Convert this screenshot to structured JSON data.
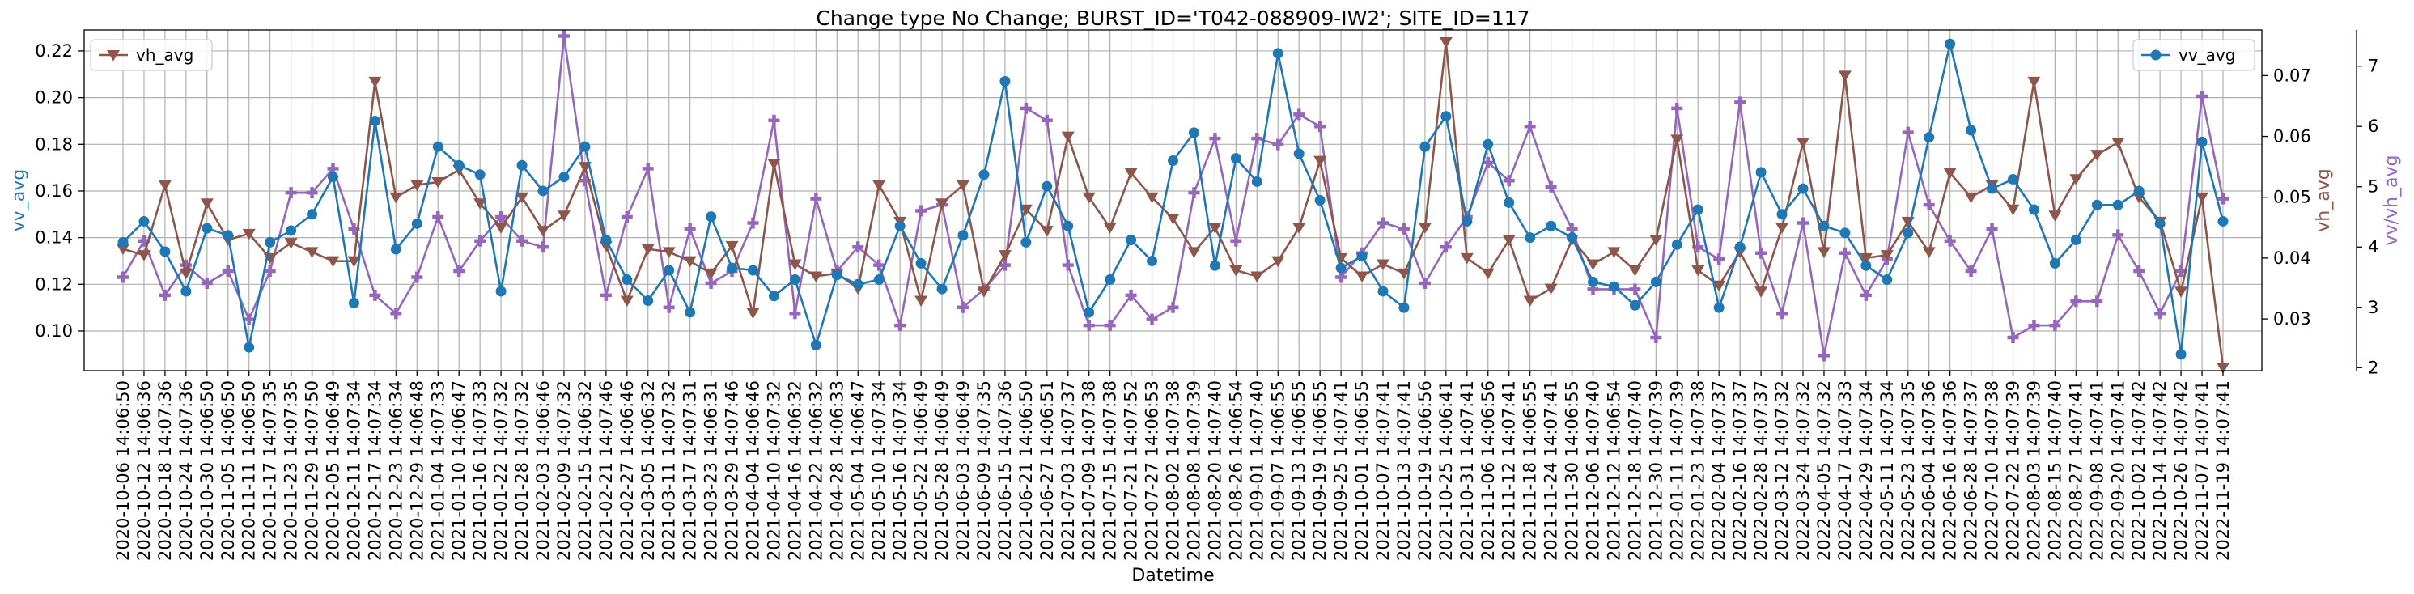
{
  "chart_data": {
    "type": "line",
    "title": "Change type No Change; BURST_ID='T042-088909-IW2'; SITE_ID=117",
    "xlabel": "Datetime",
    "grid": true,
    "categories": [
      "2020-10-06 14:06:50",
      "2020-10-12 14:06:36",
      "2020-10-18 14:07:36",
      "2020-10-24 14:07:36",
      "2020-10-30 14:06:50",
      "2020-11-05 14:06:50",
      "2020-11-11 14:06:50",
      "2020-11-17 14:07:35",
      "2020-11-23 14:07:35",
      "2020-11-29 14:07:50",
      "2020-12-05 14:06:49",
      "2020-12-11 14:07:34",
      "2020-12-17 14:07:34",
      "2020-12-23 14:06:34",
      "2020-12-29 14:06:48",
      "2021-01-04 14:07:33",
      "2021-01-10 14:06:47",
      "2021-01-16 14:07:33",
      "2021-01-22 14:07:32",
      "2021-01-28 14:07:32",
      "2021-02-03 14:06:46",
      "2021-02-09 14:07:32",
      "2021-02-15 14:06:32",
      "2021-02-21 14:07:46",
      "2021-02-27 14:06:46",
      "2021-03-05 14:06:32",
      "2021-03-11 14:07:32",
      "2021-03-17 14:07:31",
      "2021-03-23 14:06:31",
      "2021-03-29 14:07:46",
      "2021-04-04 14:06:46",
      "2021-04-10 14:07:32",
      "2021-04-16 14:06:32",
      "2021-04-22 14:06:32",
      "2021-04-28 14:06:33",
      "2021-05-04 14:06:47",
      "2021-05-10 14:07:34",
      "2021-05-16 14:07:34",
      "2021-05-22 14:06:49",
      "2021-05-28 14:06:49",
      "2021-06-03 14:06:49",
      "2021-06-09 14:07:35",
      "2021-06-15 14:07:36",
      "2021-06-21 14:06:50",
      "2021-06-27 14:06:51",
      "2021-07-03 14:07:37",
      "2021-07-09 14:07:38",
      "2021-07-15 14:07:38",
      "2021-07-21 14:07:52",
      "2021-07-27 14:06:53",
      "2021-08-02 14:07:38",
      "2021-08-08 14:07:39",
      "2021-08-20 14:07:40",
      "2021-08-26 14:06:54",
      "2021-09-01 14:07:40",
      "2021-09-07 14:06:55",
      "2021-09-13 14:06:55",
      "2021-09-19 14:06:55",
      "2021-09-25 14:07:41",
      "2021-10-01 14:06:55",
      "2021-10-07 14:07:41",
      "2021-10-13 14:07:41",
      "2021-10-19 14:06:56",
      "2021-10-25 14:06:41",
      "2021-10-31 14:07:41",
      "2021-11-06 14:06:56",
      "2021-11-12 14:07:41",
      "2021-11-18 14:06:55",
      "2021-11-24 14:07:41",
      "2021-11-30 14:06:55",
      "2021-12-06 14:07:40",
      "2021-12-12 14:06:54",
      "2021-12-18 14:07:40",
      "2021-12-30 14:07:39",
      "2022-01-11 14:07:39",
      "2022-01-23 14:07:38",
      "2022-02-04 14:07:37",
      "2022-02-16 14:07:37",
      "2022-02-28 14:07:37",
      "2022-03-12 14:07:32",
      "2022-03-24 14:07:32",
      "2022-04-05 14:07:32",
      "2022-04-17 14:07:33",
      "2022-04-29 14:07:34",
      "2022-05-11 14:07:34",
      "2022-05-23 14:07:35",
      "2022-06-04 14:07:36",
      "2022-06-16 14:07:36",
      "2022-06-28 14:07:37",
      "2022-07-10 14:07:38",
      "2022-07-22 14:07:39",
      "2022-08-03 14:07:39",
      "2022-08-15 14:07:40",
      "2022-08-27 14:07:41",
      "2022-09-08 14:07:41",
      "2022-09-20 14:07:41",
      "2022-10-02 14:07:42",
      "2022-10-14 14:07:42",
      "2022-10-26 14:07:42",
      "2022-11-07 14:07:41",
      "2022-11-19 14:07:41"
    ],
    "x_tick_labels": [
      "2020-10-06 14:06:50",
      "2020-10-12 14:06:36",
      "2020-10-18 14:07:36",
      "2020-10-24 14:07:36",
      "2020-10-30 14:06:50",
      "2020-11-05 14:06:50",
      "2020-11-11 14:06:50",
      "2020-11-17 14:07:35",
      "2020-11-23 14:07:35",
      "2020-11-29 14:07:50",
      "2020-12-05 14:06:49",
      "2020-12-11 14:07:34",
      "2020-12-17 14:07:34",
      "2020-12-23 14:06:34",
      "2020-12-29 14:06:48",
      "2021-01-04 14:07:33",
      "2021-01-10 14:06:47",
      "2021-01-16 14:07:33",
      "2021-01-22 14:07:32",
      "2021-01-28 14:07:32",
      "2021-02-03 14:06:46",
      "2021-02-09 14:07:32",
      "2021-02-15 14:06:32",
      "2021-02-21 14:07:46",
      "2021-02-27 14:06:46",
      "2021-03-05 14:06:32",
      "2021-03-11 14:07:32",
      "2021-03-17 14:07:31",
      "2021-03-23 14:06:31",
      "2021-03-29 14:07:46",
      "2021-04-04 14:06:46",
      "2021-04-10 14:07:32",
      "2021-04-16 14:06:32",
      "2021-04-22 14:06:32",
      "2021-04-28 14:06:33",
      "2021-05-04 14:06:47",
      "2021-05-10 14:07:34",
      "2021-05-16 14:07:34",
      "2021-05-22 14:06:49",
      "2021-05-28 14:06:49",
      "2021-06-03 14:06:49",
      "2021-06-09 14:07:35",
      "2021-06-15 14:07:36",
      "2021-06-21 14:06:50",
      "2021-06-27 14:06:51",
      "2021-07-03 14:07:37",
      "2021-07-09 14:07:38",
      "2021-07-15 14:07:38",
      "2021-07-21 14:07:52",
      "2021-07-27 14:06:53",
      "2021-08-02 14:07:38",
      "2021-08-08 14:07:39",
      "2021-08-20 14:07:40",
      "2021-08-26 14:06:54",
      "2021-09-01 14:07:40",
      "2021-09-07 14:06:55",
      "2021-09-13 14:06:55",
      "2021-09-19 14:06:55",
      "2021-09-25 14:07:41",
      "2021-10-01 14:06:55",
      "2021-10-07 14:07:41",
      "2021-10-13 14:07:41",
      "2021-10-19 14:06:56",
      "2021-10-25 14:06:41",
      "2021-10-31 14:07:41",
      "2021-11-06 14:06:56",
      "2021-11-12 14:07:41",
      "2021-11-18 14:06:55",
      "2021-11-24 14:07:41",
      "2021-11-30 14:06:55",
      "2021-12-06 14:07:40",
      "2021-12-12 14:06:54",
      "2021-12-18 14:07:40",
      "2021-12-30 14:07:39",
      "2022-01-11 14:07:39",
      "2022-01-23 14:07:38",
      "2022-02-04 14:07:37",
      "2022-02-16 14:07:37",
      "2022-02-28 14:07:37",
      "2022-03-12 14:07:32",
      "2022-03-24 14:07:32",
      "2022-04-05 14:07:32",
      "2022-04-17 14:07:33",
      "2022-04-29 14:07:34",
      "2022-05-11 14:07:34",
      "2022-05-23 14:07:35",
      "2022-06-04 14:07:36",
      "2022-06-16 14:07:36",
      "2022-06-28 14:07:37",
      "2022-07-10 14:07:38",
      "2022-07-22 14:07:39",
      "2022-08-03 14:07:39",
      "2022-08-15 14:07:40",
      "2022-08-27 14:07:41",
      "2022-09-08 14:07:41",
      "2022-09-20 14:07:41",
      "2022-10-02 14:07:42",
      "2022-10-14 14:07:42",
      "2022-10-26 14:07:42",
      "2022-11-07 14:07:41",
      "2022-11-19 14:07:41"
    ],
    "axes": [
      {
        "side": "left",
        "label": "vv_avg",
        "color": "#1f77b4",
        "ylim": [
          0.083,
          0.229
        ],
        "ticks": [
          0.1,
          0.12,
          0.14,
          0.16,
          0.18,
          0.2,
          0.22
        ],
        "tick_labels": [
          "0.10",
          "0.12",
          "0.14",
          "0.16",
          "0.18",
          "0.20",
          "0.22"
        ]
      },
      {
        "side": "right",
        "label": "vh_avg",
        "color": "#8c564b",
        "ylim": [
          0.0215,
          0.0775
        ],
        "ticks": [
          0.03,
          0.04,
          0.05,
          0.06,
          0.07
        ],
        "tick_labels": [
          "0.03",
          "0.04",
          "0.05",
          "0.06",
          "0.07"
        ]
      },
      {
        "side": "right-outer",
        "label": "vv/vh_avg",
        "color": "#9467bd",
        "ylim": [
          1.95,
          7.6
        ],
        "ticks": [
          2,
          3,
          4,
          5,
          6,
          7
        ],
        "tick_labels": [
          "2",
          "3",
          "4",
          "5",
          "6",
          "7"
        ]
      }
    ],
    "series": [
      {
        "name": "vv_avg",
        "axis": 0,
        "color": "#1f77b4",
        "marker": "circle",
        "values": [
          0.138,
          0.147,
          0.134,
          0.117,
          0.144,
          0.141,
          0.093,
          0.138,
          0.143,
          0.15,
          0.166,
          0.112,
          0.19,
          0.135,
          0.146,
          0.179,
          0.171,
          0.167,
          0.117,
          0.171,
          0.16,
          0.166,
          0.179,
          0.139,
          0.122,
          0.113,
          0.126,
          0.108,
          0.149,
          0.127,
          0.126,
          0.115,
          0.122,
          0.094,
          0.124,
          0.12,
          0.122,
          0.145,
          0.129,
          0.118,
          0.141,
          0.167,
          0.207,
          0.138,
          0.162,
          0.145,
          0.108,
          0.122,
          0.139,
          0.13,
          0.173,
          0.185,
          0.128,
          0.174,
          0.164,
          0.219,
          0.176,
          0.156,
          0.127,
          0.132,
          0.117,
          0.11,
          0.179,
          0.192,
          0.147,
          0.18,
          0.155,
          0.14,
          0.145,
          0.14,
          0.121,
          0.119,
          0.111,
          0.121,
          0.137,
          0.152,
          0.11,
          0.136,
          0.168,
          0.15,
          0.161,
          0.145,
          0.142,
          0.128,
          0.122,
          0.142,
          0.183,
          0.223,
          0.186,
          0.161,
          0.165,
          0.152,
          0.129,
          0.139,
          0.154,
          0.154,
          0.16,
          0.146,
          0.09,
          0.181,
          0.147
        ]
      },
      {
        "name": "vh_avg",
        "axis": 1,
        "color": "#8c564b",
        "marker": "triangle-down",
        "values": [
          0.0415,
          0.0405,
          0.052,
          0.0375,
          0.049,
          0.043,
          0.044,
          0.04,
          0.0425,
          0.041,
          0.0395,
          0.0395,
          0.069,
          0.05,
          0.052,
          0.0525,
          0.0545,
          0.049,
          0.045,
          0.05,
          0.0445,
          0.047,
          0.055,
          0.042,
          0.033,
          0.0415,
          0.041,
          0.0395,
          0.0375,
          0.042,
          0.031,
          0.0555,
          0.039,
          0.037,
          0.0375,
          0.035,
          0.052,
          0.046,
          0.033,
          0.049,
          0.052,
          0.0345,
          0.0405,
          0.048,
          0.0445,
          0.06,
          0.05,
          0.045,
          0.054,
          0.05,
          0.0465,
          0.041,
          0.045,
          0.038,
          0.037,
          0.0395,
          0.045,
          0.056,
          0.04,
          0.037,
          0.039,
          0.0375,
          0.045,
          0.0755,
          0.04,
          0.0375,
          0.043,
          0.033,
          0.035,
          0.043,
          0.039,
          0.041,
          0.038,
          0.043,
          0.0595,
          0.038,
          0.0355,
          0.041,
          0.0345,
          0.045,
          0.059,
          0.041,
          0.07,
          0.04,
          0.0405,
          0.046,
          0.041,
          0.054,
          0.05,
          0.052,
          0.048,
          0.069,
          0.047,
          0.053,
          0.057,
          0.059,
          0.05,
          0.046,
          0.0345,
          0.05,
          0.022
        ]
      },
      {
        "name": "vv/vh_avg",
        "axis": 2,
        "color": "#9467bd",
        "marker": "plus",
        "values": [
          3.5,
          4.1,
          3.2,
          3.7,
          3.4,
          3.6,
          2.8,
          3.6,
          4.9,
          4.9,
          5.3,
          4.3,
          3.2,
          2.9,
          3.5,
          4.5,
          3.6,
          4.1,
          4.5,
          4.1,
          4.0,
          7.5,
          5.1,
          3.2,
          4.5,
          5.3,
          3.0,
          4.3,
          3.4,
          3.6,
          4.4,
          6.1,
          2.9,
          4.8,
          3.6,
          4.0,
          3.7,
          2.7,
          4.6,
          4.7,
          3.0,
          3.3,
          3.7,
          6.3,
          6.1,
          3.7,
          2.7,
          2.7,
          3.2,
          2.8,
          3.0,
          4.9,
          5.8,
          4.1,
          5.8,
          5.7,
          6.2,
          6.0,
          3.5,
          3.9,
          4.4,
          4.3,
          3.4,
          4.0,
          4.5,
          5.4,
          5.1,
          6.0,
          5.0,
          4.3,
          3.3,
          3.3,
          3.3,
          2.5,
          6.3,
          4.0,
          3.8,
          6.4,
          3.9,
          2.9,
          4.4,
          2.2,
          3.9,
          3.2,
          3.8,
          5.9,
          4.7,
          4.1,
          3.6,
          4.3,
          2.5,
          2.7,
          2.7,
          3.1,
          3.1,
          4.2,
          3.6,
          2.9,
          3.6,
          6.5,
          4.8
        ]
      }
    ],
    "legends": [
      {
        "placement": "top-left",
        "entries": [
          "vh_avg"
        ]
      },
      {
        "placement": "top-right",
        "entries": [
          "vv_avg"
        ]
      }
    ]
  }
}
